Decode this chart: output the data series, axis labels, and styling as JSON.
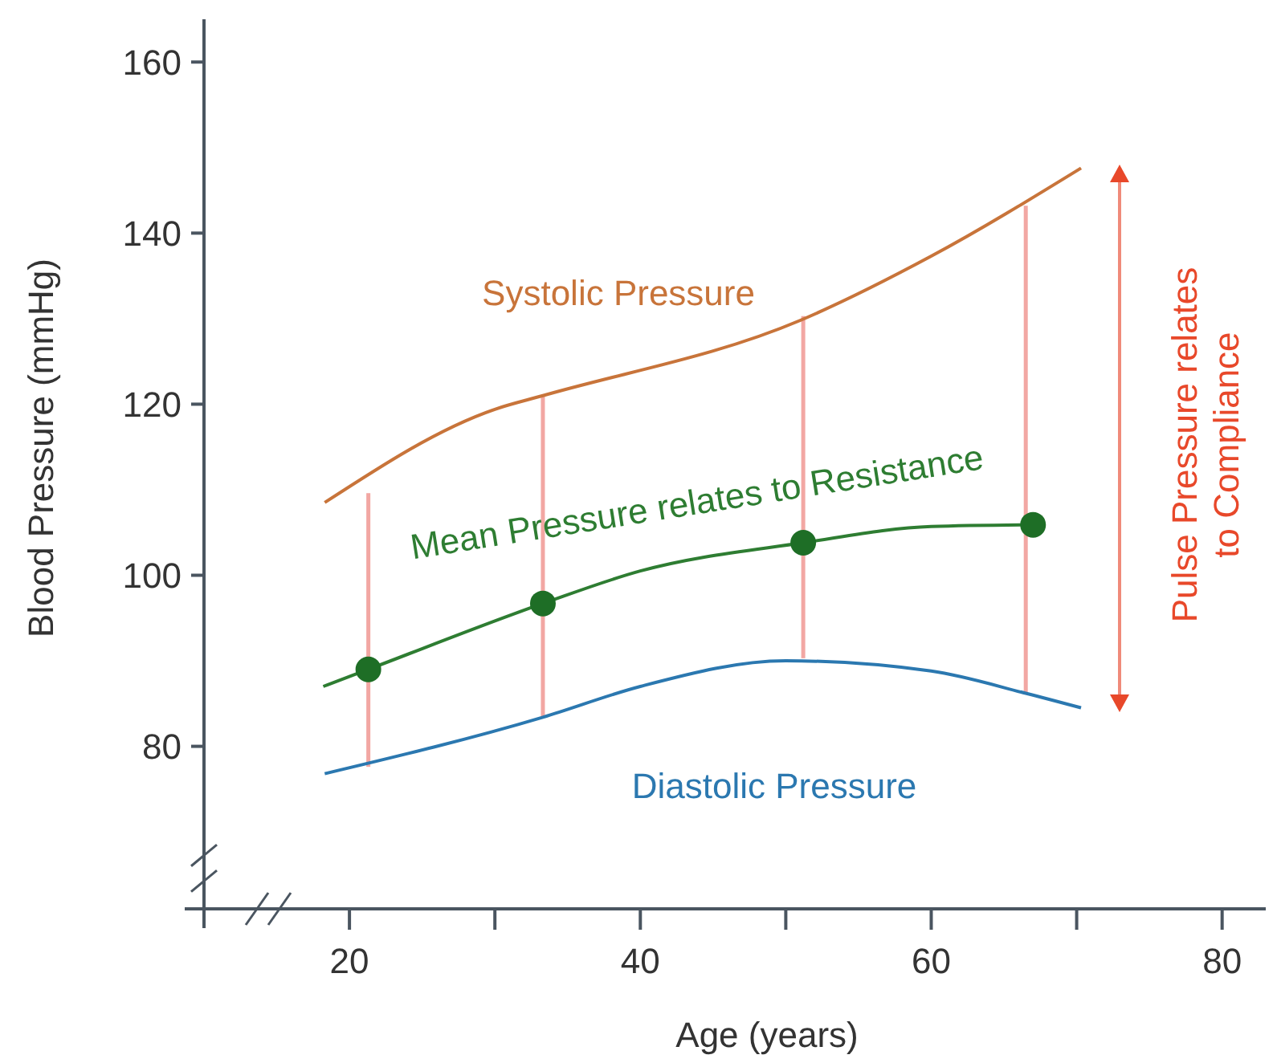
{
  "chart_data": {
    "type": "line",
    "xlabel": "Age (years)",
    "ylabel": "Blood Pressure (mmHg)",
    "xlim": [
      10,
      83
    ],
    "ylim": [
      61,
      165
    ],
    "xticks": [
      20,
      {
        "value": 30,
        "label": null
      },
      40,
      {
        "value": 50,
        "label": null
      },
      60,
      {
        "value": 70,
        "label": null
      },
      80
    ],
    "yticks": [
      80,
      100,
      120,
      140,
      160
    ],
    "grid": false,
    "legend": false,
    "series": [
      {
        "type": "bar",
        "color": "#f2a7a3",
        "x": [
          21.3,
          33.3,
          51.2,
          66.5
        ],
        "base": [
          77.6,
          83.4,
          90.3,
          86.2
        ],
        "values": [
          32,
          37.6,
          40,
          57
        ]
      },
      {
        "name": "Systolic Pressure",
        "color": "#c8743a",
        "marker": "none",
        "x": [
          18.3,
          30,
          33.3,
          51,
          60,
          70.3
        ],
        "values": [
          108.5,
          119.4,
          121,
          129.8,
          137.3,
          147.6
        ]
      },
      {
        "name": "Diastolic Pressure",
        "color": "#2b78b0",
        "marker": "none",
        "x": [
          18.3,
          33.3,
          40,
          50,
          60,
          66.5,
          70.3
        ],
        "values": [
          76.8,
          83.4,
          87,
          90,
          88.8,
          86.2,
          84.5
        ]
      },
      {
        "name": "Mean Pressure relates to Resistance",
        "color": "#2e7d32",
        "marker": "none",
        "x": [
          18.2,
          21.3,
          33.3,
          40,
          51.2,
          60,
          67
        ],
        "values": [
          87,
          89,
          96.7,
          100.5,
          103.8,
          105.7,
          105.9
        ]
      },
      {
        "type": "scatter",
        "color": "#1e6e26",
        "marker": "circle",
        "x": [
          21.3,
          33.3,
          51.2,
          67
        ],
        "values": [
          89,
          96.7,
          103.8,
          105.9
        ]
      }
    ],
    "annotations": [
      "Pulse Pressure relates\nto Compliance"
    ]
  }
}
